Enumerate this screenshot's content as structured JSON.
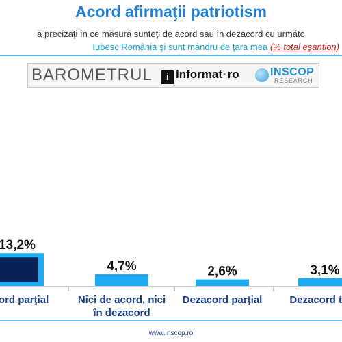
{
  "header": {
    "title": "Acord afirmaţii patriotism",
    "question": "ă precizaţi în ce măsură sunteţi de acord sau în dezacord cu următo",
    "statement": "Iubesc România şi sunt mândru de ţara mea",
    "sample_note": "(% total eşantion)"
  },
  "banner": {
    "barometru": "BAROMETRUL",
    "informat_icon": "i",
    "informat": "Informat",
    "informat_suffix": "ro",
    "inscop": "INSCOP",
    "inscop_sub": "RESEARCH"
  },
  "footer": {
    "url": "www.inscop.ro"
  },
  "colors": {
    "bar_main": "#1eaaf1",
    "bar_dark": "#0b2256",
    "title": "#1e7fd4",
    "category_text": "#1a3f8a"
  },
  "chart_data": {
    "type": "bar",
    "categories": [
      "Acord parţial",
      "Nici de acord, nici în dezacord",
      "Dezacord parţial",
      "Dezacord total"
    ],
    "category_lines": [
      [
        "Acord parţial"
      ],
      [
        "Nici de acord, nici",
        "în dezacord"
      ],
      [
        "Dezacord parţial"
      ],
      [
        "Dezacord total"
      ]
    ],
    "values": [
      13.2,
      4.7,
      2.6,
      3.1
    ],
    "value_labels": [
      "13,2%",
      "4,7%",
      "2,6%",
      "3,1%"
    ],
    "title": "Acord afirmaţii patriotism",
    "xlabel": "",
    "ylabel": ""
  }
}
